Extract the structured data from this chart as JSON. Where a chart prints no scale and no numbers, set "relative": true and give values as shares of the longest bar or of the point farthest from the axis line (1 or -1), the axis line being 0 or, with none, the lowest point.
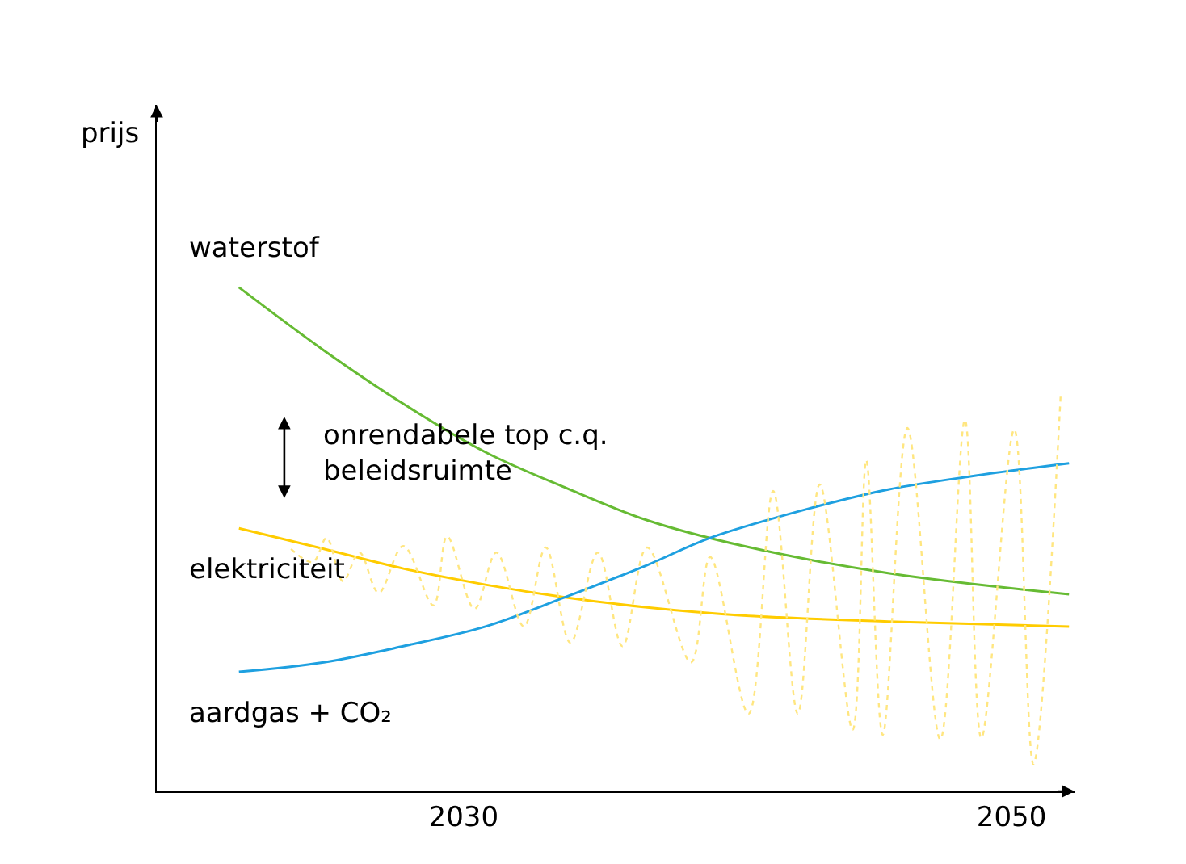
{
  "chart_data": {
    "type": "line",
    "relative": true,
    "annotations": [
      "prijs",
      "onrendabele top c.q.\nbeleidsruimte"
    ],
    "xlim": [
      2018.8,
      2052.3
    ],
    "xticks": [
      2030,
      2050
    ],
    "tick_labels": "x",
    "legend": false,
    "marker": "none",
    "series": [
      {
        "name": "waterstof",
        "color": "#66bb33",
        "x": [
          2021.8,
          2024.9,
          2027.8,
          2030.8,
          2033.7,
          2036.7,
          2040.2,
          2045.5,
          2052.1
        ],
        "values": [
          1.0,
          0.875,
          0.769,
          0.673,
          0.603,
          0.538,
          0.487,
          0.433,
          0.391
        ]
      },
      {
        "name": "elektriciteit",
        "color": "#ffcc00",
        "x": [
          2021.8,
          2024.9,
          2027.8,
          2030.8,
          2033.7,
          2036.7,
          2040.2,
          2045.5,
          2052.1
        ],
        "values": [
          0.522,
          0.481,
          0.442,
          0.41,
          0.385,
          0.365,
          0.349,
          0.337,
          0.327
        ]
      },
      {
        "name": "aardgas + CO₂",
        "color": "#1ea0e0",
        "x": [
          2021.8,
          2024.9,
          2027.8,
          2030.8,
          2033.7,
          2036.7,
          2039.0,
          2042.6,
          2045.5,
          2048.5,
          2052.1
        ],
        "values": [
          0.237,
          0.256,
          0.288,
          0.327,
          0.385,
          0.449,
          0.503,
          0.561,
          0.599,
          0.625,
          0.651
        ]
      },
      {
        "color": "#ffe680",
        "line_style": "dotted",
        "x": [
          2023.7,
          2024.5,
          2025.0,
          2025.6,
          2026.2,
          2026.9,
          2027.8,
          2028.9,
          2029.4,
          2030.4,
          2031.2,
          2032.2,
          2033.0,
          2033.9,
          2034.9,
          2035.8,
          2036.7,
          2038.3,
          2039.0,
          2040.4,
          2041.3,
          2042.2,
          2043.0,
          2044.2,
          2044.7,
          2045.3,
          2046.2,
          2047.4,
          2048.3,
          2048.9,
          2050.1,
          2050.8,
          2051.8
        ],
        "values": [
          0.481,
          0.455,
          0.503,
          0.417,
          0.474,
          0.394,
          0.487,
          0.369,
          0.506,
          0.362,
          0.474,
          0.327,
          0.484,
          0.295,
          0.474,
          0.288,
          0.484,
          0.256,
          0.465,
          0.154,
          0.596,
          0.154,
          0.609,
          0.122,
          0.657,
          0.112,
          0.721,
          0.103,
          0.737,
          0.106,
          0.718,
          0.054,
          0.792
        ]
      }
    ]
  }
}
